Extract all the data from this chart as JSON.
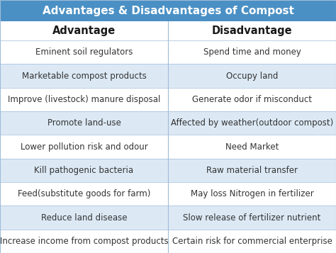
{
  "title": "Advantages & Disadvantages of Compost",
  "col1_header": "Advantage",
  "col2_header": "Disadvantage",
  "rows": [
    [
      "Eminent soil regulators",
      "Spend time and money"
    ],
    [
      "Marketable compost products",
      "Occupy land"
    ],
    [
      "Improve (livestock) manure disposal",
      "Generate odor if misconduct"
    ],
    [
      "Promote land-use",
      "Affected by weather(outdoor compost)"
    ],
    [
      "Lower pollution risk and odour",
      "Need Market"
    ],
    [
      "Kill pathogenic bacteria",
      "Raw material transfer"
    ],
    [
      "Feed(substitute goods for farm)",
      "May loss Nitrogen in fertilizer"
    ],
    [
      "Reduce land disease",
      "Slow release of fertilizer nutrient"
    ],
    [
      "Increase income from compost products",
      "Certain risk for commercial enterprise"
    ]
  ],
  "title_bg": "#4a90c4",
  "title_text_color": "#ffffff",
  "header_text_color": "#1a1a1a",
  "row_bg_light": "#dce9f5",
  "row_bg_white": "#ffffff",
  "cell_text_color": "#333333",
  "divider_color": "#a0bcd8",
  "fig_bg": "#ffffff",
  "title_fontsize": 11,
  "header_fontsize": 10.5,
  "cell_fontsize": 8.5
}
